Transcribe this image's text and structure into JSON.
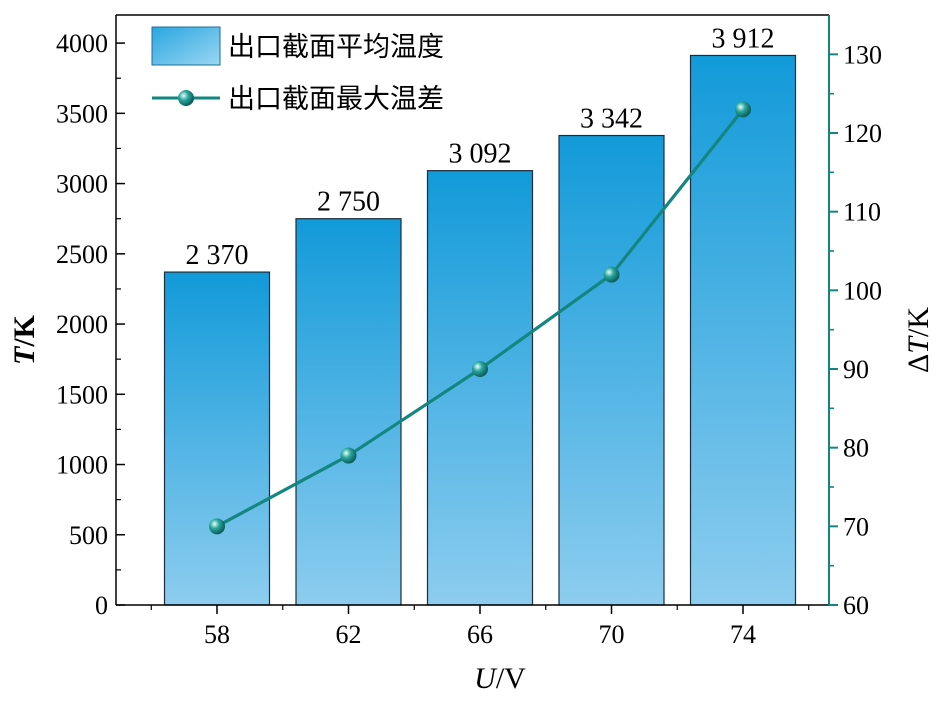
{
  "chart_data": {
    "type": "bar+line",
    "categories": [
      "58",
      "62",
      "66",
      "70",
      "74"
    ],
    "series": [
      {
        "name": "出口截面平均温度",
        "type": "bar",
        "axis": "left",
        "values": [
          2370,
          2750,
          3092,
          3342,
          3912
        ],
        "labels": [
          "2 370",
          "2 750",
          "3 092",
          "3 342",
          "3 912"
        ]
      },
      {
        "name": "出口截面最大温差",
        "type": "line",
        "axis": "right",
        "values": [
          70,
          79,
          90,
          102,
          123
        ]
      }
    ],
    "xlabel_italic": "U",
    "xlabel_unit": "/V",
    "ylabel_italic": "T",
    "ylabel_unit": "/K",
    "y2label_prefix": "Δ",
    "y2label_italic": "T",
    "y2label_unit": "/K",
    "ylim": [
      0,
      4200
    ],
    "y2lim": [
      60,
      135
    ],
    "yticks": [
      0,
      500,
      1000,
      1500,
      2000,
      2500,
      3000,
      3500,
      4000
    ],
    "y2ticks": [
      60,
      70,
      80,
      90,
      100,
      110,
      120,
      130
    ],
    "legend_position": "top-left",
    "colors": {
      "bar_top": "#129ad9",
      "bar_bottom": "#8dcdef",
      "line": "#13867f",
      "marker": "#1a8f88",
      "right_axis": "#13867f"
    }
  }
}
